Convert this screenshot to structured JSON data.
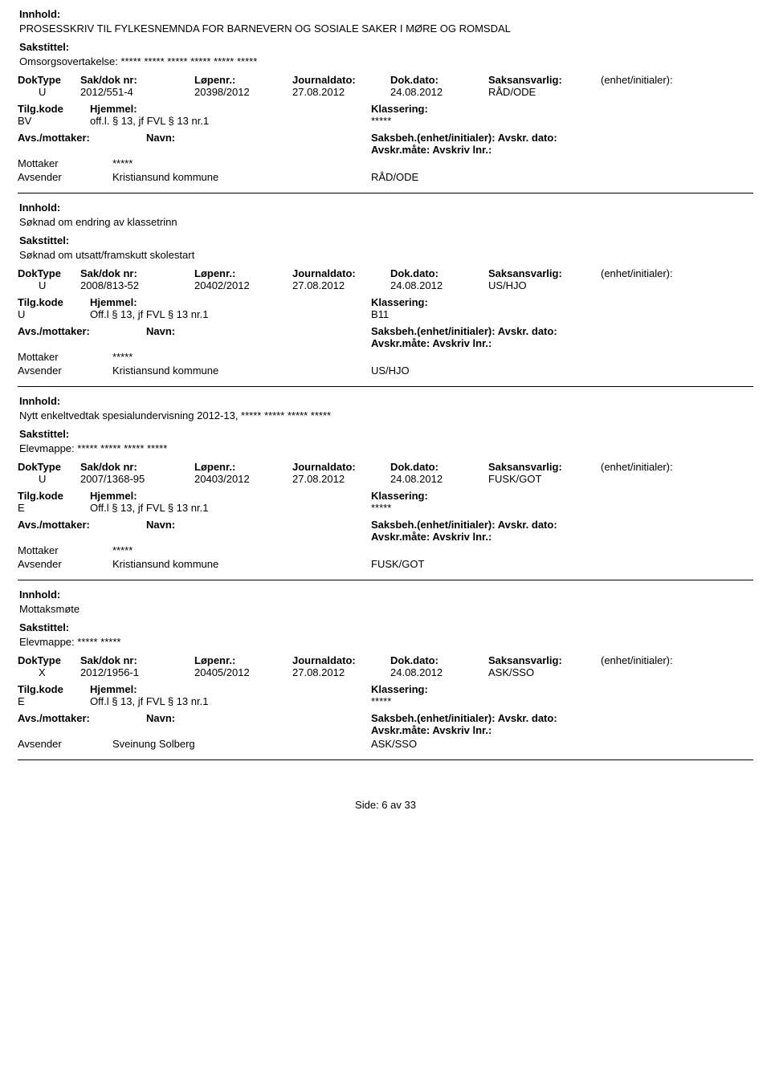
{
  "labels": {
    "innhold": "Innhold:",
    "sakstittel": "Sakstittel:",
    "doktype": "DokType",
    "saknr": "Sak/dok nr:",
    "lopenr": "Løpenr.:",
    "journaldato": "Journaldato:",
    "dokdato": "Dok.dato:",
    "saksansvarlig": "Saksansvarlig:",
    "enhet_initialer": "(enhet/initialer):",
    "tilgkode": "Tilg.kode",
    "hjemmel": "Hjemmel:",
    "klassering": "Klassering:",
    "avsmottaker": "Avs./mottaker:",
    "navn": "Navn:",
    "saksbeh_label": "Saksbeh.(enhet/initialer):",
    "avskr_dato": "Avskr. dato:",
    "avskr_mate": "Avskr.måte:",
    "avskriv_lnr": "Avskriv lnr.:",
    "mottaker": "Mottaker",
    "avsender": "Avsender"
  },
  "entries": [
    {
      "innhold": "PROSESSKRIV TIL FYLKESNEMNDA FOR BARNEVERN OG SOSIALE SAKER I MØRE OG ROMSDAL",
      "sakstittel": "Omsorgsovertakelse: ***** ***** ***** ***** ***** *****",
      "doktype": "U",
      "saknr": "2012/551-4",
      "lopenr": "20398/2012",
      "journaldato": "27.08.2012",
      "dokdato": "24.08.2012",
      "saksansvarlig": "RÅD/ODE",
      "tilgkode": "BV",
      "hjemmel": "off.l. § 13, jf FVL § 13 nr.1",
      "klassering": "*****",
      "parties": [
        {
          "role": "Mottaker",
          "name": "*****",
          "val": ""
        },
        {
          "role": "Avsender",
          "name": "Kristiansund kommune",
          "val": "RÅD/ODE"
        }
      ]
    },
    {
      "innhold": "Søknad om endring av klassetrinn",
      "sakstittel": "Søknad om utsatt/framskutt skolestart",
      "doktype": "U",
      "saknr": "2008/813-52",
      "lopenr": "20402/2012",
      "journaldato": "27.08.2012",
      "dokdato": "24.08.2012",
      "saksansvarlig": "US/HJO",
      "tilgkode": "U",
      "hjemmel": "Off.l § 13, jf FVL § 13 nr.1",
      "klassering": "B11",
      "parties": [
        {
          "role": "Mottaker",
          "name": "*****",
          "val": ""
        },
        {
          "role": "Avsender",
          "name": "Kristiansund kommune",
          "val": "US/HJO"
        }
      ]
    },
    {
      "innhold": "Nytt enkeltvedtak spesialundervisning 2012-13, ***** ***** ***** *****",
      "sakstittel": "Elevmappe: ***** ***** ***** *****",
      "doktype": "U",
      "saknr": "2007/1368-95",
      "lopenr": "20403/2012",
      "journaldato": "27.08.2012",
      "dokdato": "24.08.2012",
      "saksansvarlig": "FUSK/GOT",
      "tilgkode": "E",
      "hjemmel": "Off.l § 13, jf FVL § 13 nr.1",
      "klassering": "*****",
      "parties": [
        {
          "role": "Mottaker",
          "name": "*****",
          "val": ""
        },
        {
          "role": "Avsender",
          "name": "Kristiansund kommune",
          "val": "FUSK/GOT"
        }
      ]
    },
    {
      "innhold": "Mottaksmøte",
      "sakstittel": "Elevmappe: ***** *****",
      "doktype": "X",
      "saknr": "2012/1956-1",
      "lopenr": "20405/2012",
      "journaldato": "27.08.2012",
      "dokdato": "24.08.2012",
      "saksansvarlig": "ASK/SSO",
      "tilgkode": "E",
      "hjemmel": "Off.l § 13, jf FVL § 13 nr.1",
      "klassering": "*****",
      "parties": [
        {
          "role": "Avsender",
          "name": "Sveinung Solberg",
          "val": "ASK/SSO"
        }
      ]
    }
  ],
  "footer": "Side: 6 av 33"
}
